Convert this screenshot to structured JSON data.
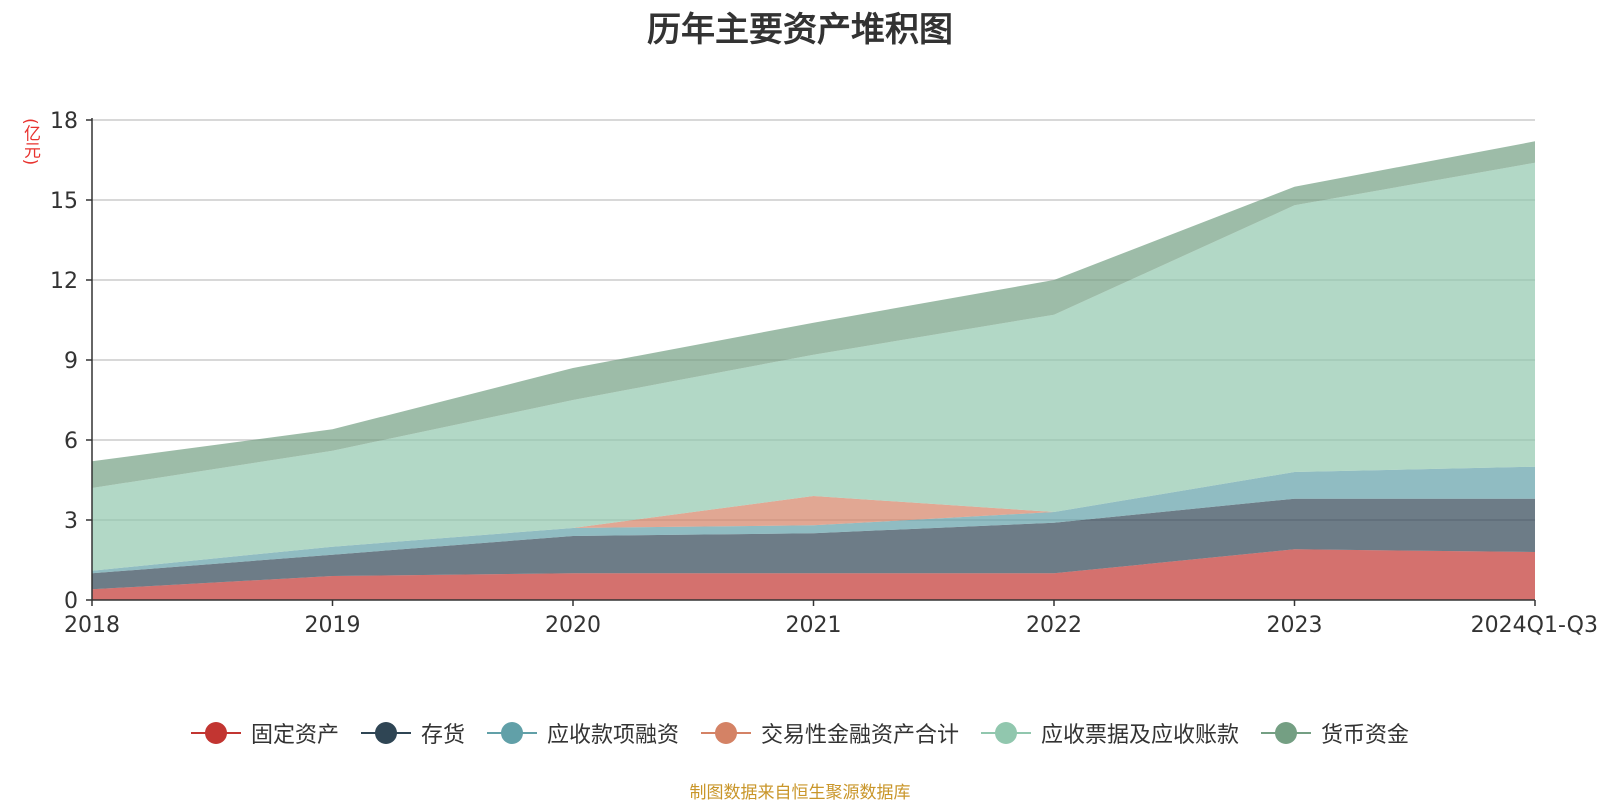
{
  "colors": {
    "fixed_assets": "#c23531",
    "inventory": "#2f4554",
    "receivables_financing": "#61a0a8",
    "trading_financial_assets": "#d48265",
    "notes_accounts_receivable": "#91c7ae",
    "monetary_funds": "#749f83"
  },
  "chart_data": {
    "type": "area",
    "stacked": true,
    "title": "历年主要资产堆积图",
    "unit": "(亿元)",
    "categories": [
      "2018",
      "2019",
      "2020",
      "2021",
      "2022",
      "2023",
      "2024Q1-Q3"
    ],
    "y_ticks": [
      "0",
      "3",
      "6",
      "9",
      "12",
      "15",
      "18"
    ],
    "ylim": [
      0,
      18
    ],
    "grid": true,
    "legend_position": "bottom",
    "series": [
      {
        "name": "固定资产",
        "values": [
          0.4,
          0.9,
          1.0,
          1.0,
          1.0,
          1.9,
          1.8
        ]
      },
      {
        "name": "存货",
        "values": [
          0.6,
          0.8,
          1.4,
          1.5,
          1.9,
          1.9,
          2.0
        ]
      },
      {
        "name": "应收款项融资",
        "values": [
          0.1,
          0.3,
          0.3,
          0.3,
          0.4,
          1.0,
          1.2
        ]
      },
      {
        "name": "交易性金融资产合计",
        "values": [
          0.0,
          0.0,
          0.0,
          1.1,
          0.0,
          0.0,
          0.0
        ]
      },
      {
        "name": "应收票据及应收账款",
        "values": [
          3.1,
          3.6,
          4.8,
          5.3,
          7.4,
          10.0,
          11.4
        ]
      },
      {
        "name": "货币资金",
        "values": [
          1.0,
          0.8,
          1.2,
          1.2,
          1.3,
          0.7,
          0.8
        ]
      }
    ]
  },
  "source_note": "制图数据来自恒生聚源数据库"
}
